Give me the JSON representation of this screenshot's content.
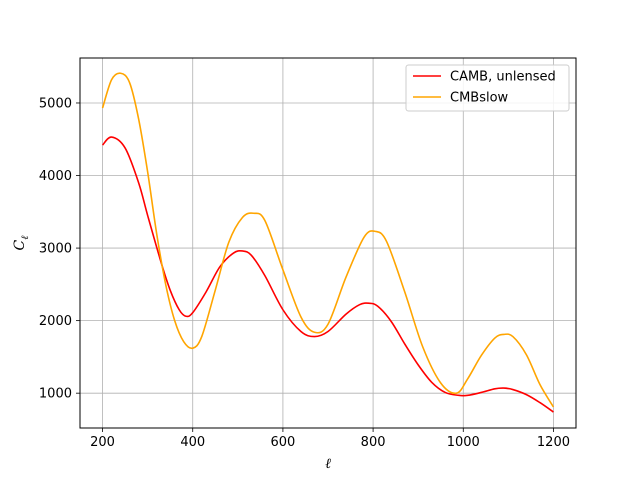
{
  "chart_data": {
    "type": "line",
    "xlabel": "ℓ",
    "ylabel": "C",
    "ylabel_subscript": "ℓ",
    "xlim": [
      150,
      1250
    ],
    "ylim": [
      520,
      5620
    ],
    "x_ticks": [
      200,
      400,
      600,
      800,
      1000,
      1200
    ],
    "y_ticks": [
      1000,
      2000,
      3000,
      4000,
      5000
    ],
    "grid": true,
    "legend_position": "top-right",
    "series": [
      {
        "name": "CAMB, unlensed",
        "color": "#ff0000",
        "x": [
          200,
          220,
          250,
          280,
          300,
          330,
          350,
          370,
          385,
          400,
          430,
          460,
          490,
          510,
          530,
          560,
          600,
          640,
          670,
          700,
          740,
          770,
          790,
          810,
          840,
          870,
          900,
          930,
          960,
          990,
          1010,
          1040,
          1070,
          1090,
          1110,
          1140,
          1170,
          1200
        ],
        "y": [
          4420,
          4530,
          4380,
          3900,
          3450,
          2800,
          2420,
          2150,
          2060,
          2110,
          2400,
          2740,
          2930,
          2960,
          2900,
          2620,
          2150,
          1850,
          1780,
          1850,
          2090,
          2220,
          2240,
          2200,
          1990,
          1680,
          1390,
          1150,
          1010,
          970,
          970,
          1010,
          1060,
          1070,
          1050,
          980,
          870,
          740
        ]
      },
      {
        "name": "CMBslow",
        "color": "#ffa500",
        "x": [
          200,
          220,
          240,
          260,
          280,
          300,
          320,
          340,
          360,
          380,
          400,
          420,
          450,
          480,
          510,
          535,
          560,
          600,
          640,
          670,
          700,
          740,
          780,
          805,
          830,
          870,
          910,
          950,
          985,
          1010,
          1040,
          1070,
          1090,
          1110,
          1140,
          1170,
          1200
        ],
        "y": [
          4930,
          5320,
          5410,
          5280,
          4780,
          4050,
          3200,
          2500,
          2000,
          1710,
          1620,
          1780,
          2420,
          3080,
          3420,
          3480,
          3380,
          2700,
          2050,
          1840,
          1950,
          2600,
          3150,
          3230,
          3090,
          2400,
          1640,
          1140,
          1000,
          1200,
          1520,
          1760,
          1810,
          1780,
          1530,
          1120,
          810
        ]
      }
    ]
  }
}
